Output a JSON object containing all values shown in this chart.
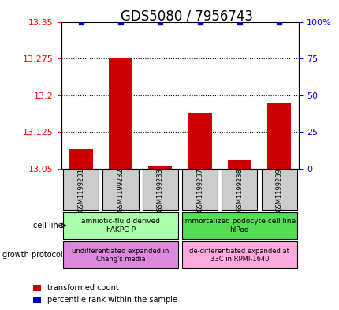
{
  "title": "GDS5080 / 7956743",
  "samples": [
    "GSM1199231",
    "GSM1199232",
    "GSM1199233",
    "GSM1199237",
    "GSM1199238",
    "GSM1199239"
  ],
  "red_values": [
    13.09,
    13.275,
    13.055,
    13.165,
    13.068,
    13.185
  ],
  "blue_values": [
    100,
    100,
    100,
    100,
    100,
    100
  ],
  "ylim_left": [
    13.05,
    13.35
  ],
  "ylim_right": [
    0,
    100
  ],
  "yticks_left": [
    13.05,
    13.125,
    13.2,
    13.275,
    13.35
  ],
  "ytick_labels_left": [
    "13.05",
    "13.125",
    "13.2",
    "13.275",
    "13.35"
  ],
  "yticks_right": [
    0,
    25,
    50,
    75,
    100
  ],
  "ytick_labels_right": [
    "0",
    "25",
    "50",
    "75",
    "100%"
  ],
  "cell_line_groups": [
    {
      "label": "amniotic-fluid derived\nhAKPC-P",
      "start": 0,
      "end": 3,
      "color": "#aaffaa"
    },
    {
      "label": "immortalized podocyte cell line\nhIPod",
      "start": 3,
      "end": 6,
      "color": "#55dd55"
    }
  ],
  "growth_protocol_groups": [
    {
      "label": "undifferentiated expanded in\nChang's media",
      "start": 0,
      "end": 3,
      "color": "#dd88dd"
    },
    {
      "label": "de-differentiated expanded at\n33C in RPMI-1640",
      "start": 3,
      "end": 6,
      "color": "#ffaadd"
    }
  ],
  "cell_line_label": "cell line",
  "growth_protocol_label": "growth protocol",
  "legend_red_label": "transformed count",
  "legend_blue_label": "percentile rank within the sample",
  "bar_color": "#cc0000",
  "dot_color": "#0000cc",
  "title_fontsize": 12,
  "tick_fontsize": 8,
  "label_fontsize": 8
}
